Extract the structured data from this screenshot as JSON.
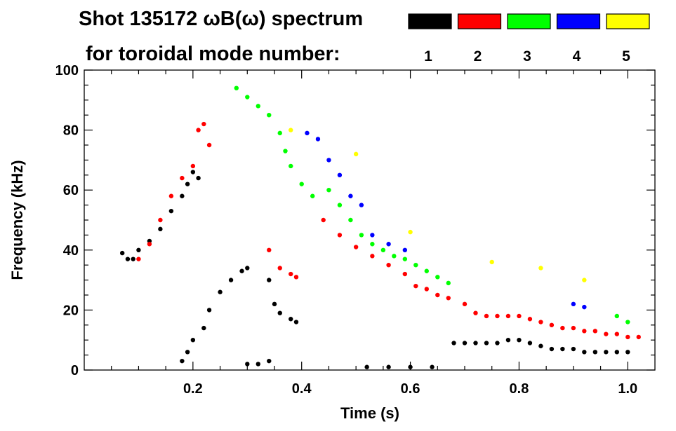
{
  "chart_data": {
    "type": "scatter",
    "title_line1": "Shot 135172 ωB(ω) spectrum",
    "title_line2": "for toroidal mode number:",
    "xlabel": "Time (s)",
    "ylabel": "Frequency (kHz)",
    "xlim": [
      0.0,
      1.05
    ],
    "ylim": [
      0,
      100
    ],
    "xticks": [
      {
        "value": 0.2,
        "label": "0.2"
      },
      {
        "value": 0.4,
        "label": "0.4"
      },
      {
        "value": 0.6,
        "label": "0.6"
      },
      {
        "value": 0.8,
        "label": "0.8"
      },
      {
        "value": 1.0,
        "label": "1.0"
      }
    ],
    "yticks": [
      {
        "value": 0,
        "label": "0"
      },
      {
        "value": 20,
        "label": "20"
      },
      {
        "value": 40,
        "label": "40"
      },
      {
        "value": 60,
        "label": "60"
      },
      {
        "value": 80,
        "label": "80"
      },
      {
        "value": 100,
        "label": "100"
      }
    ],
    "grid": false,
    "legend_position": "top-right",
    "legend": [
      {
        "label": "1",
        "color": "#000000"
      },
      {
        "label": "2",
        "color": "#ff0000"
      },
      {
        "label": "3",
        "color": "#00ff00"
      },
      {
        "label": "4",
        "color": "#0000ff"
      },
      {
        "label": "5",
        "color": "#ffff00"
      }
    ],
    "series": [
      {
        "mode": 1,
        "color": "#000000",
        "points": [
          [
            0.07,
            39
          ],
          [
            0.08,
            37
          ],
          [
            0.09,
            37
          ],
          [
            0.1,
            40
          ],
          [
            0.12,
            43
          ],
          [
            0.14,
            47
          ],
          [
            0.16,
            53
          ],
          [
            0.18,
            58
          ],
          [
            0.19,
            62
          ],
          [
            0.2,
            66
          ],
          [
            0.21,
            64
          ],
          [
            0.23,
            20
          ],
          [
            0.25,
            26
          ],
          [
            0.27,
            30
          ],
          [
            0.29,
            33
          ],
          [
            0.3,
            34
          ],
          [
            0.34,
            30
          ],
          [
            0.35,
            22
          ],
          [
            0.36,
            19
          ],
          [
            0.38,
            17
          ],
          [
            0.39,
            16
          ],
          [
            0.18,
            3
          ],
          [
            0.19,
            6
          ],
          [
            0.2,
            10
          ],
          [
            0.22,
            14
          ],
          [
            0.68,
            9
          ],
          [
            0.7,
            9
          ],
          [
            0.72,
            9
          ],
          [
            0.74,
            9
          ],
          [
            0.76,
            9
          ],
          [
            0.78,
            10
          ],
          [
            0.8,
            10
          ],
          [
            0.82,
            9
          ],
          [
            0.84,
            8
          ],
          [
            0.86,
            7
          ],
          [
            0.88,
            7
          ],
          [
            0.9,
            7
          ],
          [
            0.92,
            6
          ],
          [
            0.94,
            6
          ],
          [
            0.96,
            6
          ],
          [
            0.98,
            6
          ],
          [
            1.0,
            6
          ],
          [
            0.3,
            2
          ],
          [
            0.32,
            2
          ],
          [
            0.34,
            3
          ],
          [
            0.52,
            1
          ],
          [
            0.56,
            1
          ],
          [
            0.6,
            1
          ],
          [
            0.64,
            1
          ]
        ]
      },
      {
        "mode": 2,
        "color": "#ff0000",
        "points": [
          [
            0.1,
            37
          ],
          [
            0.12,
            42
          ],
          [
            0.14,
            50
          ],
          [
            0.16,
            58
          ],
          [
            0.18,
            64
          ],
          [
            0.2,
            68
          ],
          [
            0.21,
            80
          ],
          [
            0.22,
            82
          ],
          [
            0.23,
            75
          ],
          [
            0.34,
            40
          ],
          [
            0.36,
            34
          ],
          [
            0.38,
            32
          ],
          [
            0.39,
            31
          ],
          [
            0.44,
            50
          ],
          [
            0.47,
            45
          ],
          [
            0.5,
            41
          ],
          [
            0.53,
            38
          ],
          [
            0.56,
            35
          ],
          [
            0.59,
            32
          ],
          [
            0.61,
            28
          ],
          [
            0.63,
            27
          ],
          [
            0.65,
            25
          ],
          [
            0.67,
            24
          ],
          [
            0.7,
            22
          ],
          [
            0.72,
            19
          ],
          [
            0.74,
            18
          ],
          [
            0.76,
            18
          ],
          [
            0.78,
            18
          ],
          [
            0.8,
            18
          ],
          [
            0.82,
            17
          ],
          [
            0.84,
            16
          ],
          [
            0.86,
            15
          ],
          [
            0.88,
            14
          ],
          [
            0.9,
            14
          ],
          [
            0.92,
            13
          ],
          [
            0.94,
            13
          ],
          [
            0.96,
            12
          ],
          [
            0.98,
            12
          ],
          [
            1.0,
            11
          ],
          [
            1.02,
            11
          ]
        ]
      },
      {
        "mode": 3,
        "color": "#00ff00",
        "points": [
          [
            0.28,
            94
          ],
          [
            0.3,
            91
          ],
          [
            0.32,
            88
          ],
          [
            0.34,
            85
          ],
          [
            0.36,
            79
          ],
          [
            0.37,
            73
          ],
          [
            0.38,
            68
          ],
          [
            0.4,
            62
          ],
          [
            0.42,
            58
          ],
          [
            0.45,
            60
          ],
          [
            0.47,
            55
          ],
          [
            0.49,
            50
          ],
          [
            0.51,
            45
          ],
          [
            0.53,
            42
          ],
          [
            0.55,
            40
          ],
          [
            0.57,
            38
          ],
          [
            0.59,
            37
          ],
          [
            0.61,
            35
          ],
          [
            0.63,
            33
          ],
          [
            0.65,
            31
          ],
          [
            0.67,
            29
          ],
          [
            0.98,
            18
          ],
          [
            1.0,
            16
          ]
        ]
      },
      {
        "mode": 4,
        "color": "#0000ff",
        "points": [
          [
            0.41,
            79
          ],
          [
            0.43,
            77
          ],
          [
            0.45,
            70
          ],
          [
            0.47,
            65
          ],
          [
            0.49,
            58
          ],
          [
            0.51,
            55
          ],
          [
            0.53,
            45
          ],
          [
            0.56,
            42
          ],
          [
            0.59,
            40
          ],
          [
            0.9,
            22
          ],
          [
            0.92,
            21
          ]
        ]
      },
      {
        "mode": 5,
        "color": "#ffff00",
        "points": [
          [
            0.38,
            80
          ],
          [
            0.5,
            72
          ],
          [
            0.6,
            46
          ],
          [
            0.75,
            36
          ],
          [
            0.84,
            34
          ],
          [
            0.92,
            30
          ]
        ]
      }
    ]
  }
}
